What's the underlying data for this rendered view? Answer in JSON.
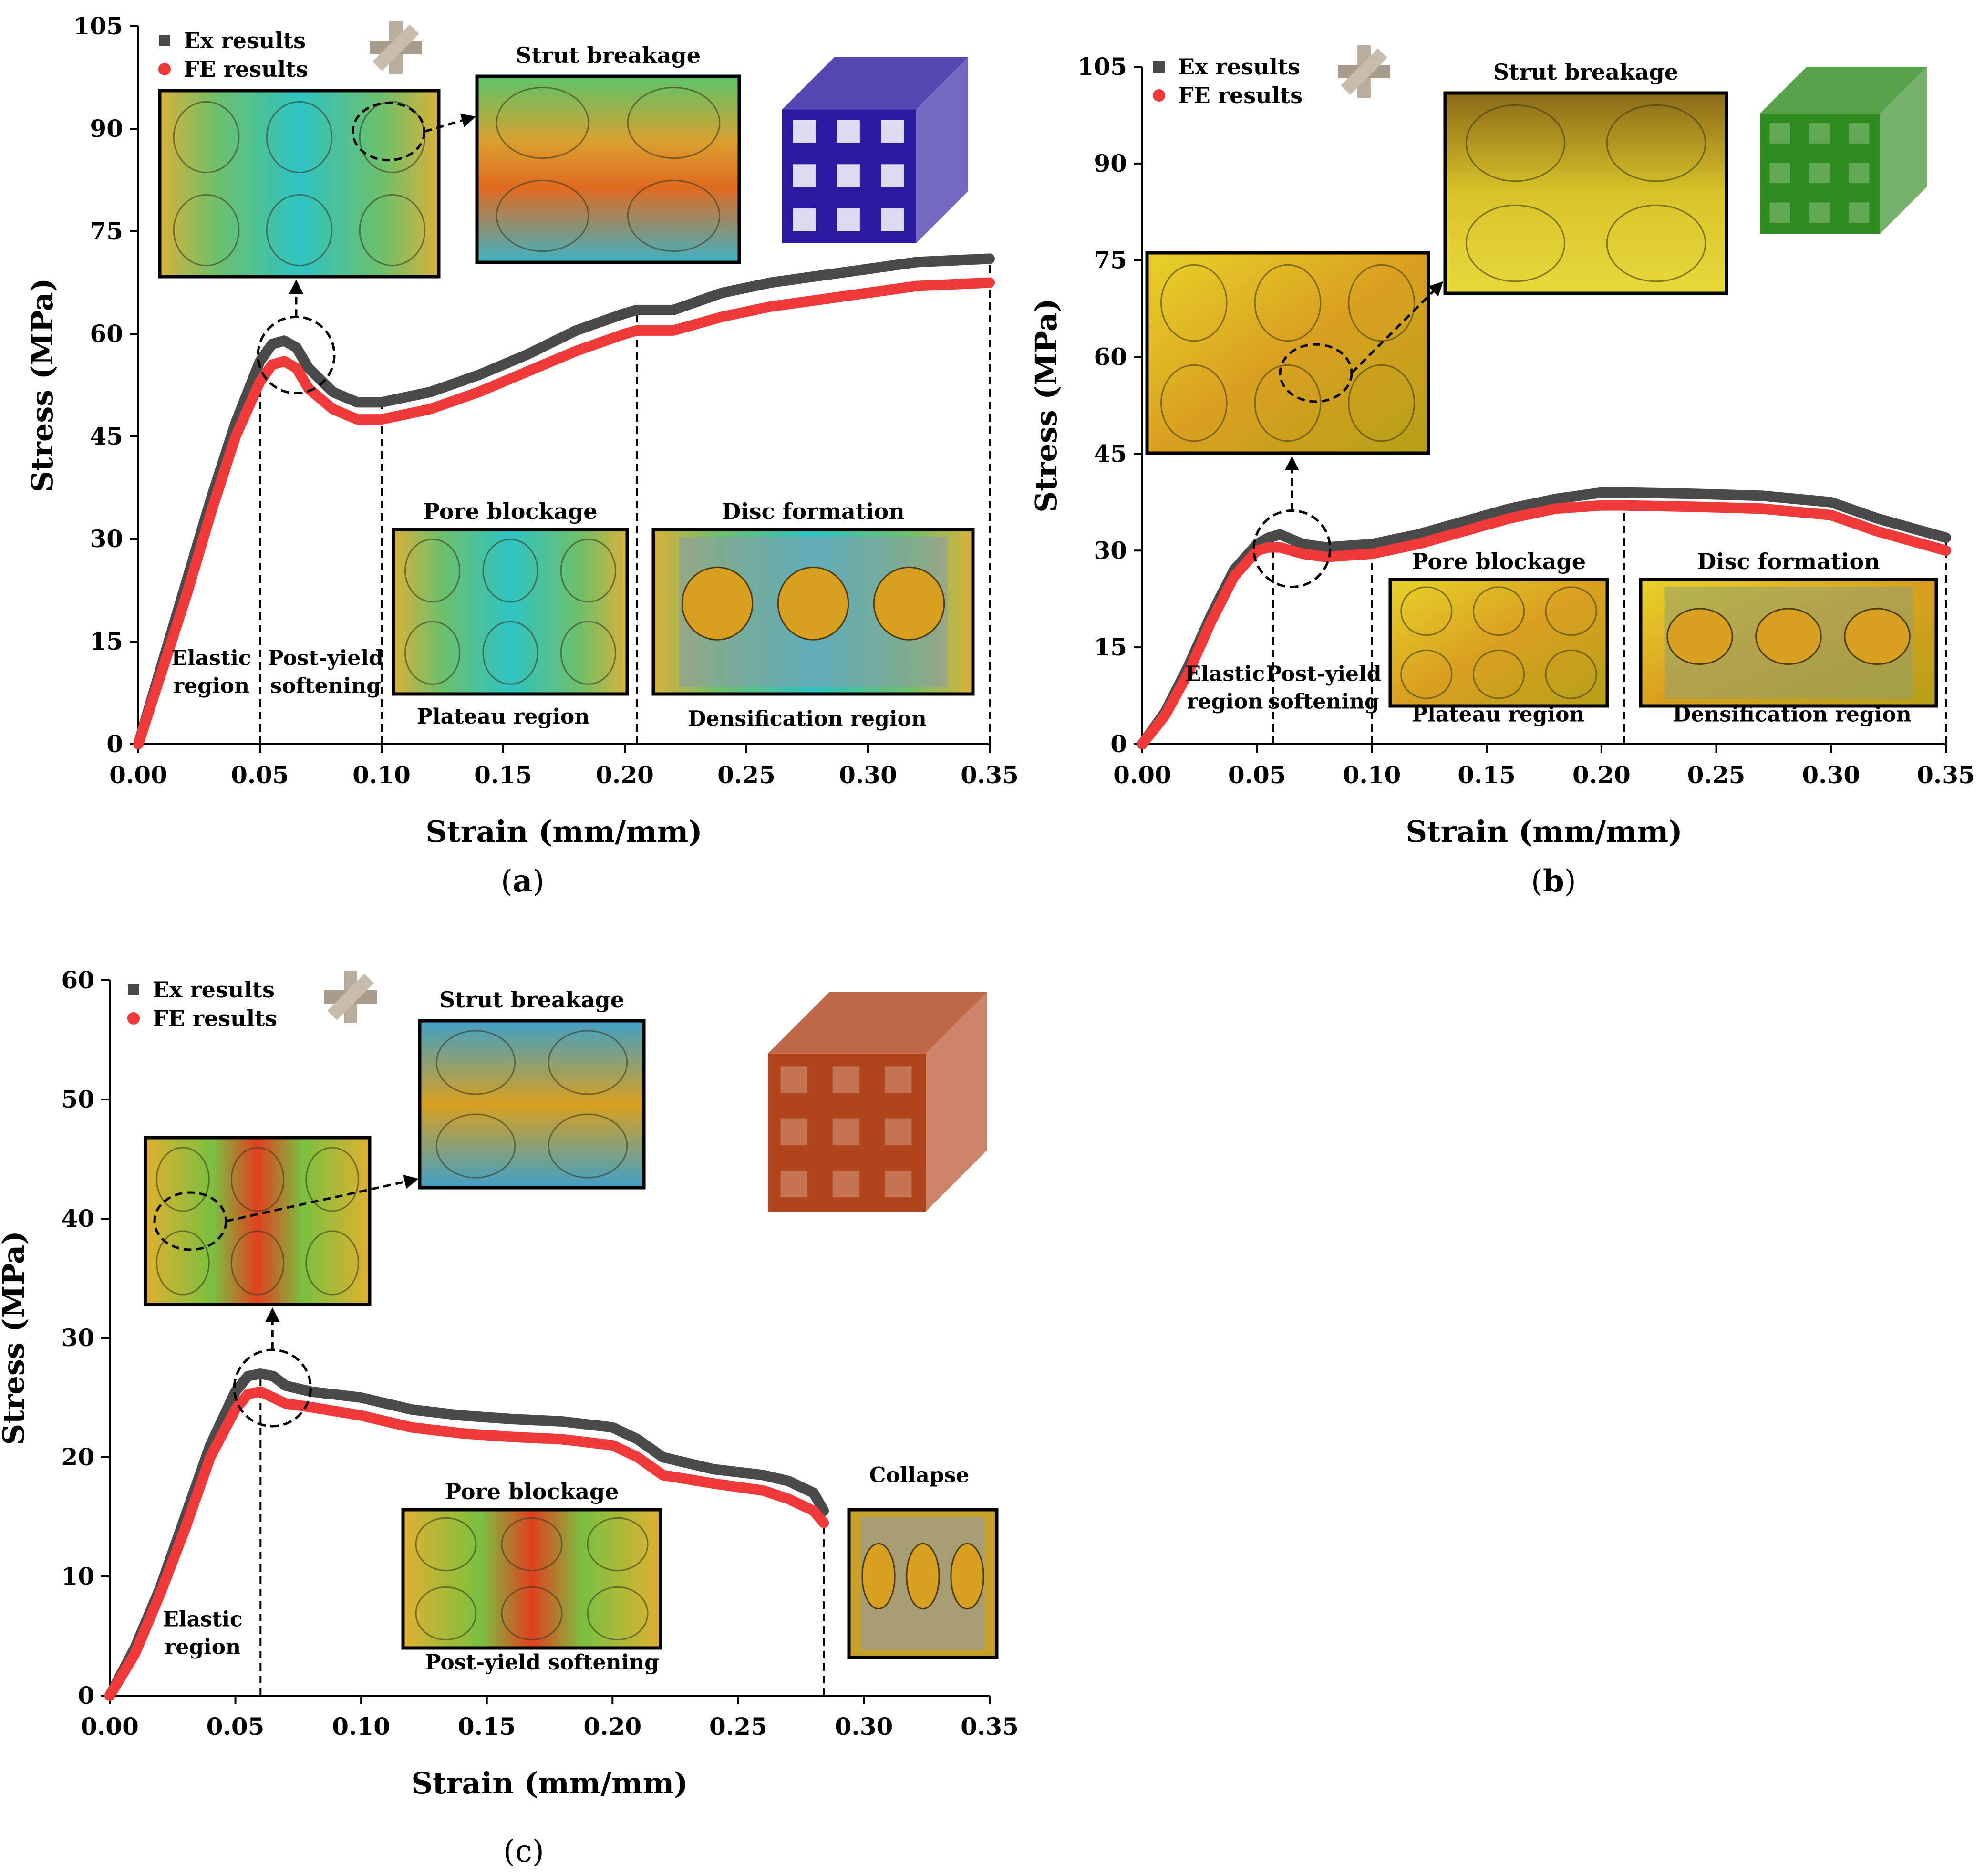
{
  "chart_data": [
    {
      "panel": "a",
      "type": "line",
      "xlabel": "Strain (mm/mm)",
      "ylabel": "Stress (MPa)",
      "xlim": [
        0,
        0.35
      ],
      "ylim": [
        0,
        105
      ],
      "xticks": [
        "0.00",
        "0.05",
        "0.10",
        "0.15",
        "0.20",
        "0.25",
        "0.30",
        "0.35"
      ],
      "yticks": [
        "0",
        "15",
        "30",
        "45",
        "60",
        "75",
        "90",
        "105"
      ],
      "legend": [
        "Ex results",
        "FE results"
      ],
      "series": [
        {
          "name": "Ex results",
          "color": "#4a4a4a",
          "x": [
            0,
            0.01,
            0.02,
            0.03,
            0.04,
            0.05,
            0.055,
            0.06,
            0.065,
            0.07,
            0.08,
            0.09,
            0.1,
            0.12,
            0.14,
            0.16,
            0.18,
            0.2,
            0.205,
            0.22,
            0.24,
            0.26,
            0.28,
            0.3,
            0.32,
            0.35
          ],
          "y": [
            0,
            12,
            24,
            36,
            47,
            56,
            58.5,
            59,
            58,
            55,
            51.5,
            50,
            50,
            51.5,
            54,
            57,
            60.5,
            63,
            63.5,
            63.5,
            66,
            67.5,
            68.5,
            69.5,
            70.5,
            71
          ]
        },
        {
          "name": "FE results",
          "color": "#f03a3a",
          "x": [
            0,
            0.01,
            0.02,
            0.03,
            0.04,
            0.05,
            0.055,
            0.06,
            0.065,
            0.07,
            0.08,
            0.09,
            0.1,
            0.12,
            0.14,
            0.16,
            0.18,
            0.2,
            0.205,
            0.22,
            0.24,
            0.26,
            0.28,
            0.3,
            0.32,
            0.35
          ],
          "y": [
            0,
            11,
            22,
            34,
            45,
            53,
            55.5,
            56,
            55,
            52,
            49,
            47.5,
            47.5,
            49,
            51.5,
            54.5,
            57.5,
            60,
            60.5,
            60.5,
            62.5,
            64,
            65,
            66,
            67,
            67.5
          ]
        }
      ],
      "vlines": [
        0.05,
        0.1,
        0.205,
        0.35
      ],
      "regions": [
        {
          "lines": [
            "Elastic",
            "region"
          ],
          "x": 0.03,
          "y": 7.5
        },
        {
          "lines": [
            "Post-yield",
            "softening"
          ],
          "x": 0.077,
          "y": 7.5
        },
        {
          "lines": [
            "Plateau region"
          ],
          "x": 0.15,
          "y": 3
        },
        {
          "lines": [
            "Densification region"
          ],
          "x": 0.275,
          "y": 2.7
        }
      ],
      "insets": [
        {
          "label": "",
          "kind": "struts"
        },
        {
          "label": "Strut breakage",
          "kind": "closeup"
        },
        {
          "label": "Pore blockage",
          "kind": "pore"
        },
        {
          "label": "Disc formation",
          "kind": "disc"
        }
      ]
    },
    {
      "panel": "b",
      "type": "line",
      "xlabel": "Strain (mm/mm)",
      "ylabel": "Stress (MPa)",
      "xlim": [
        0,
        0.35
      ],
      "ylim": [
        0,
        105
      ],
      "xticks": [
        "0.00",
        "0.05",
        "0.10",
        "0.15",
        "0.20",
        "0.25",
        "0.30",
        "0.35"
      ],
      "yticks": [
        "0",
        "15",
        "30",
        "45",
        "60",
        "75",
        "90",
        "105"
      ],
      "legend": [
        "Ex results",
        "FE results"
      ],
      "series": [
        {
          "name": "Ex results",
          "color": "#4a4a4a",
          "x": [
            0,
            0.01,
            0.02,
            0.03,
            0.04,
            0.05,
            0.055,
            0.06,
            0.07,
            0.08,
            0.1,
            0.12,
            0.14,
            0.16,
            0.18,
            0.2,
            0.21,
            0.24,
            0.27,
            0.3,
            0.32,
            0.35
          ],
          "y": [
            0,
            5,
            12,
            20,
            27,
            31,
            32,
            32.5,
            31,
            30.5,
            31,
            32.5,
            34.5,
            36.5,
            38,
            39,
            39,
            38.8,
            38.5,
            37.5,
            35,
            32
          ]
        },
        {
          "name": "FE results",
          "color": "#f03a3a",
          "x": [
            0,
            0.01,
            0.02,
            0.03,
            0.04,
            0.05,
            0.055,
            0.06,
            0.07,
            0.08,
            0.1,
            0.12,
            0.14,
            0.16,
            0.18,
            0.2,
            0.21,
            0.24,
            0.27,
            0.3,
            0.32,
            0.35
          ],
          "y": [
            0,
            4.5,
            11,
            19,
            26,
            30,
            30.5,
            30.5,
            29.5,
            29,
            29.5,
            31,
            33,
            35,
            36.5,
            37,
            37,
            36.8,
            36.5,
            35.5,
            33,
            30
          ]
        }
      ],
      "vlines": [
        0.057,
        0.1,
        0.21,
        0.35
      ],
      "regions": [
        {
          "lines": [
            "Elastic",
            "region"
          ],
          "x": 0.036,
          "y": 5.5
        },
        {
          "lines": [
            "Post-yield",
            "softening"
          ],
          "x": 0.079,
          "y": 5.5
        },
        {
          "lines": [
            "Plateau region"
          ],
          "x": 0.155,
          "y": 3.5
        },
        {
          "lines": [
            "Densification region"
          ],
          "x": 0.283,
          "y": 3.5
        }
      ],
      "insets": [
        {
          "label": "",
          "kind": "spheres"
        },
        {
          "label": "Strut breakage",
          "kind": "closeup"
        },
        {
          "label": "Pore blockage",
          "kind": "pore"
        },
        {
          "label": "Disc formation",
          "kind": "disc"
        }
      ]
    },
    {
      "panel": "c",
      "type": "line",
      "xlabel": "Strain (mm/mm)",
      "ylabel": "Stress (MPa)",
      "xlim": [
        0,
        0.35
      ],
      "ylim": [
        0,
        60
      ],
      "xticks": [
        "0.00",
        "0.05",
        "0.10",
        "0.15",
        "0.20",
        "0.25",
        "0.30",
        "0.35"
      ],
      "yticks": [
        "0",
        "10",
        "20",
        "30",
        "40",
        "50",
        "60"
      ],
      "legend": [
        "Ex results",
        "FE results"
      ],
      "series": [
        {
          "name": "Ex results",
          "color": "#4a4a4a",
          "x": [
            0,
            0.01,
            0.02,
            0.03,
            0.04,
            0.05,
            0.055,
            0.06,
            0.065,
            0.07,
            0.08,
            0.1,
            0.12,
            0.14,
            0.16,
            0.18,
            0.2,
            0.21,
            0.22,
            0.24,
            0.26,
            0.27,
            0.28,
            0.284
          ],
          "y": [
            0,
            4,
            9,
            15,
            21,
            25.5,
            26.8,
            27,
            26.8,
            26,
            25.5,
            25,
            24,
            23.5,
            23.2,
            23,
            22.5,
            21.5,
            20,
            19,
            18.5,
            18,
            17,
            15.5
          ]
        },
        {
          "name": "FE results",
          "color": "#f03a3a",
          "x": [
            0,
            0.01,
            0.02,
            0.03,
            0.04,
            0.05,
            0.055,
            0.06,
            0.065,
            0.07,
            0.08,
            0.1,
            0.12,
            0.14,
            0.16,
            0.18,
            0.2,
            0.21,
            0.22,
            0.24,
            0.26,
            0.27,
            0.28,
            0.284
          ],
          "y": [
            0,
            3.5,
            8.5,
            14,
            20,
            24,
            25.3,
            25.5,
            25,
            24.5,
            24.2,
            23.5,
            22.5,
            22,
            21.7,
            21.5,
            21,
            20,
            18.5,
            17.8,
            17.2,
            16.5,
            15.5,
            14.5
          ]
        }
      ],
      "vlines": [
        0.06,
        0.284
      ],
      "regions": [
        {
          "lines": [
            "Elastic",
            "region"
          ],
          "x": 0.037,
          "y": 3.5
        },
        {
          "lines": [
            "Post-yield softening"
          ],
          "x": 0.172,
          "y": 2.2
        },
        {
          "lines": [
            "Collapse"
          ],
          "x": 0.322,
          "y": 17.9
        }
      ],
      "insets": [
        {
          "label": "",
          "kind": "tubes"
        },
        {
          "label": "Strut breakage",
          "kind": "closeup"
        },
        {
          "label": "Pore blockage",
          "kind": "pore"
        },
        {
          "label": "",
          "kind": "collapse"
        }
      ]
    }
  ],
  "captions": [
    "(a)",
    "(b)",
    "(c)"
  ],
  "colors": {
    "ex": "#4a4a4a",
    "fe": "#f03a3a",
    "lattice_a": "#2a1aa0",
    "lattice_b": "#2e8b1e",
    "lattice_c": "#b0441a"
  }
}
